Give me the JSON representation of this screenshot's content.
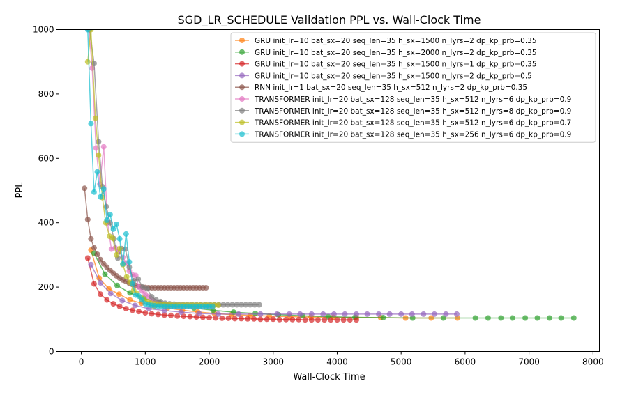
{
  "chart_data": {
    "type": "line",
    "title": "SGD_LR_SCHEDULE Validation PPL vs. Wall-Clock Time",
    "xlabel": "Wall-Clock Time",
    "ylabel": "PPL",
    "xlim": [
      -350,
      8100
    ],
    "ylim": [
      0,
      1000
    ],
    "xticks": [
      0,
      1000,
      2000,
      3000,
      4000,
      5000,
      6000,
      7000,
      8000
    ],
    "yticks": [
      0,
      200,
      400,
      600,
      800,
      1000
    ],
    "grid": false,
    "legend_position": "top-right",
    "series": [
      {
        "name": "GRU init_lr=10 bat_sx=20 seq_len=35 h_sx=1500 n_lyrs=2 dp_kp_prb=0.35",
        "color": "#ff7f0e",
        "x": [
          150,
          280,
          430,
          590,
          760,
          940,
          1140,
          1350,
          1580,
          1820,
          2080,
          2350,
          2640,
          2940,
          3260,
          3590,
          3940,
          4300,
          4680,
          5070,
          5470,
          5880
        ],
        "y": [
          315,
          228,
          195,
          178,
          160,
          150,
          140,
          135,
          128,
          123,
          118,
          114,
          112,
          110,
          108,
          107,
          106,
          105,
          105,
          104,
          104,
          104
        ]
      },
      {
        "name": "GRU init_lr=10 bat_sx=20 seq_len=35 h_sx=2000 n_lyrs=2 dp_kp_prb=0.35",
        "color": "#2ca02c",
        "x": [
          200,
          370,
          560,
          760,
          980,
          1220,
          1480,
          1760,
          2060,
          2380,
          2720,
          3080,
          3460,
          3860,
          4280,
          4720,
          5180,
          5660,
          6160,
          6360,
          6560,
          6740,
          6940,
          7130,
          7320,
          7500,
          7700
        ],
        "y": [
          305,
          240,
          205,
          182,
          165,
          152,
          142,
          135,
          128,
          122,
          118,
          114,
          111,
          108,
          106,
          105,
          104,
          104,
          104,
          104,
          104,
          104,
          104,
          104,
          104,
          104,
          104
        ]
      },
      {
        "name": "GRU init_lr=10 bat_sx=20 seq_len=35 h_sx=1500 n_lyrs=1 dp_kp_prb=0.35",
        "color": "#d62728",
        "x": [
          100,
          200,
          300,
          400,
          500,
          600,
          700,
          800,
          900,
          1000,
          1100,
          1200,
          1300,
          1400,
          1500,
          1600,
          1700,
          1800,
          1900,
          2000,
          2100,
          2200,
          2300,
          2400,
          2500,
          2600,
          2700,
          2800,
          2900,
          3000,
          3100,
          3200,
          3300,
          3400,
          3500,
          3600,
          3700,
          3800,
          3900,
          4000,
          4100,
          4200,
          4300
        ],
        "y": [
          290,
          210,
          178,
          160,
          148,
          140,
          133,
          128,
          124,
          120,
          117,
          115,
          113,
          112,
          110,
          109,
          108,
          107,
          106,
          105,
          104,
          103,
          103,
          102,
          102,
          101,
          101,
          100,
          100,
          100,
          99,
          99,
          99,
          99,
          98,
          98,
          98,
          98,
          98,
          98,
          98,
          98,
          98
        ]
      },
      {
        "name": "GRU init_lr=10 bat_sx=20 seq_len=35 h_sx=1500 n_lyrs=2 dp_kp_prb=0.5",
        "color": "#9467bd",
        "x": [
          150,
          300,
          460,
          640,
          840,
          1060,
          1300,
          1560,
          1840,
          2140,
          2460,
          2800,
          3060,
          3250,
          3420,
          3600,
          3780,
          3950,
          4120,
          4300,
          4470,
          4650,
          4820,
          5000,
          5170,
          5350,
          5520,
          5700,
          5870
        ],
        "y": [
          270,
          213,
          180,
          158,
          143,
          133,
          127,
          122,
          118,
          116,
          116,
          116,
          116,
          116,
          116,
          116,
          116,
          116,
          116,
          116,
          116,
          116,
          116,
          116,
          116,
          116,
          116,
          116,
          116
        ]
      },
      {
        "name": "RNN init_lr=1 bat_sx=20 seq_len=35 h_sx=512 n_lyrs=2 dp_kp_prb=0.35",
        "color": "#8c564b",
        "x": [
          50,
          100,
          150,
          200,
          250,
          300,
          350,
          400,
          450,
          500,
          550,
          600,
          650,
          700,
          750,
          800,
          850,
          900,
          950,
          1000,
          1050,
          1100,
          1150,
          1200,
          1250,
          1300,
          1350,
          1400,
          1450,
          1500,
          1550,
          1600,
          1650,
          1700,
          1750,
          1800,
          1850,
          1900,
          1950
        ],
        "y": [
          507,
          410,
          350,
          322,
          302,
          285,
          272,
          262,
          252,
          243,
          235,
          228,
          222,
          217,
          212,
          208,
          205,
          202,
          200,
          199,
          198,
          198,
          198,
          198,
          198,
          198,
          198,
          198,
          198,
          198,
          198,
          198,
          198,
          198,
          198,
          198,
          198,
          198,
          198
        ]
      },
      {
        "name": "TRANSFORMER init_lr=20 bat_sx=128 seq_len=35 h_sx=512 n_lyrs=6 dp_kp_prb=0.9",
        "color": "#e377c2",
        "x": [
          120,
          170,
          230,
          290,
          350,
          410,
          470,
          530,
          590,
          650,
          700,
          750,
          800,
          850,
          900,
          950,
          1000,
          1050,
          1100,
          1150,
          1200,
          1250,
          1300,
          1350,
          1400,
          1450,
          1500,
          1550,
          1600,
          1650,
          1700,
          1750,
          1800,
          1850,
          1900,
          1950,
          2000,
          2050
        ],
        "y": [
          1000,
          880,
          632,
          520,
          636,
          400,
          318,
          322,
          310,
          292,
          275,
          250,
          238,
          236,
          200,
          188,
          178,
          170,
          162,
          155,
          150,
          147,
          145,
          143,
          142,
          141,
          141,
          140,
          140,
          140,
          140,
          140,
          140,
          140,
          140,
          140,
          140,
          140
        ]
      },
      {
        "name": "TRANSFORMER init_lr=20 bat_sx=128 seq_len=35 h_sx=512 n_lyrs=8 dp_kp_prb=0.9",
        "color": "#7f7f7f",
        "x": [
          130,
          200,
          270,
          330,
          390,
          450,
          510,
          570,
          630,
          690,
          750,
          820,
          890,
          960,
          1030,
          1100,
          1170,
          1240,
          1310,
          1380,
          1450,
          1520,
          1590,
          1660,
          1730,
          1800,
          1870,
          1940,
          2010,
          2080,
          2150,
          2220,
          2290,
          2360,
          2430,
          2500,
          2570,
          2640,
          2710,
          2780
        ],
        "y": [
          1000,
          895,
          652,
          512,
          450,
          400,
          350,
          290,
          320,
          318,
          262,
          220,
          225,
          200,
          195,
          170,
          160,
          155,
          150,
          148,
          147,
          146,
          146,
          145,
          145,
          145,
          145,
          145,
          145,
          145,
          145,
          145,
          145,
          145,
          145,
          145,
          145,
          145,
          145,
          145
        ]
      },
      {
        "name": "TRANSFORMER init_lr=20 bat_sx=128 seq_len=35 h_sx=512 n_lyrs=6 dp_kp_prb=0.7",
        "color": "#bcbd22",
        "x": [
          100,
          150,
          220,
          270,
          330,
          380,
          440,
          490,
          550,
          600,
          650,
          710,
          760,
          820,
          870,
          930,
          980,
          1040,
          1090,
          1150,
          1200,
          1260,
          1310,
          1370,
          1420,
          1480,
          1530,
          1590,
          1640,
          1700,
          1750,
          1810,
          1860,
          1920,
          1970,
          2030,
          2080,
          2140
        ],
        "y": [
          900,
          1000,
          725,
          610,
          478,
          400,
          358,
          352,
          300,
          320,
          270,
          232,
          215,
          190,
          180,
          168,
          160,
          155,
          150,
          148,
          147,
          146,
          145,
          145,
          144,
          144,
          144,
          144,
          144,
          144,
          144,
          144,
          144,
          144,
          144,
          144,
          144,
          144
        ]
      },
      {
        "name": "TRANSFORMER init_lr=20 bat_sx=128 seq_len=35 h_sx=256 n_lyrs=6 dp_kp_prb=0.9",
        "color": "#17becf",
        "x": [
          100,
          150,
          200,
          250,
          300,
          350,
          400,
          450,
          500,
          550,
          600,
          650,
          700,
          750,
          800,
          850,
          900,
          950,
          1000,
          1050,
          1100,
          1150,
          1200,
          1250,
          1300,
          1350,
          1400,
          1450,
          1500,
          1550,
          1600,
          1650,
          1700,
          1750,
          1800,
          1850,
          1900,
          1950,
          2000,
          2050
        ],
        "y": [
          1000,
          708,
          495,
          558,
          480,
          505,
          408,
          425,
          380,
          395,
          350,
          272,
          365,
          278,
          210,
          175,
          172,
          160,
          148,
          145,
          143,
          142,
          141,
          141,
          141,
          140,
          140,
          140,
          140,
          140,
          140,
          140,
          140,
          140,
          140,
          140,
          140,
          140,
          140,
          140
        ]
      }
    ]
  }
}
